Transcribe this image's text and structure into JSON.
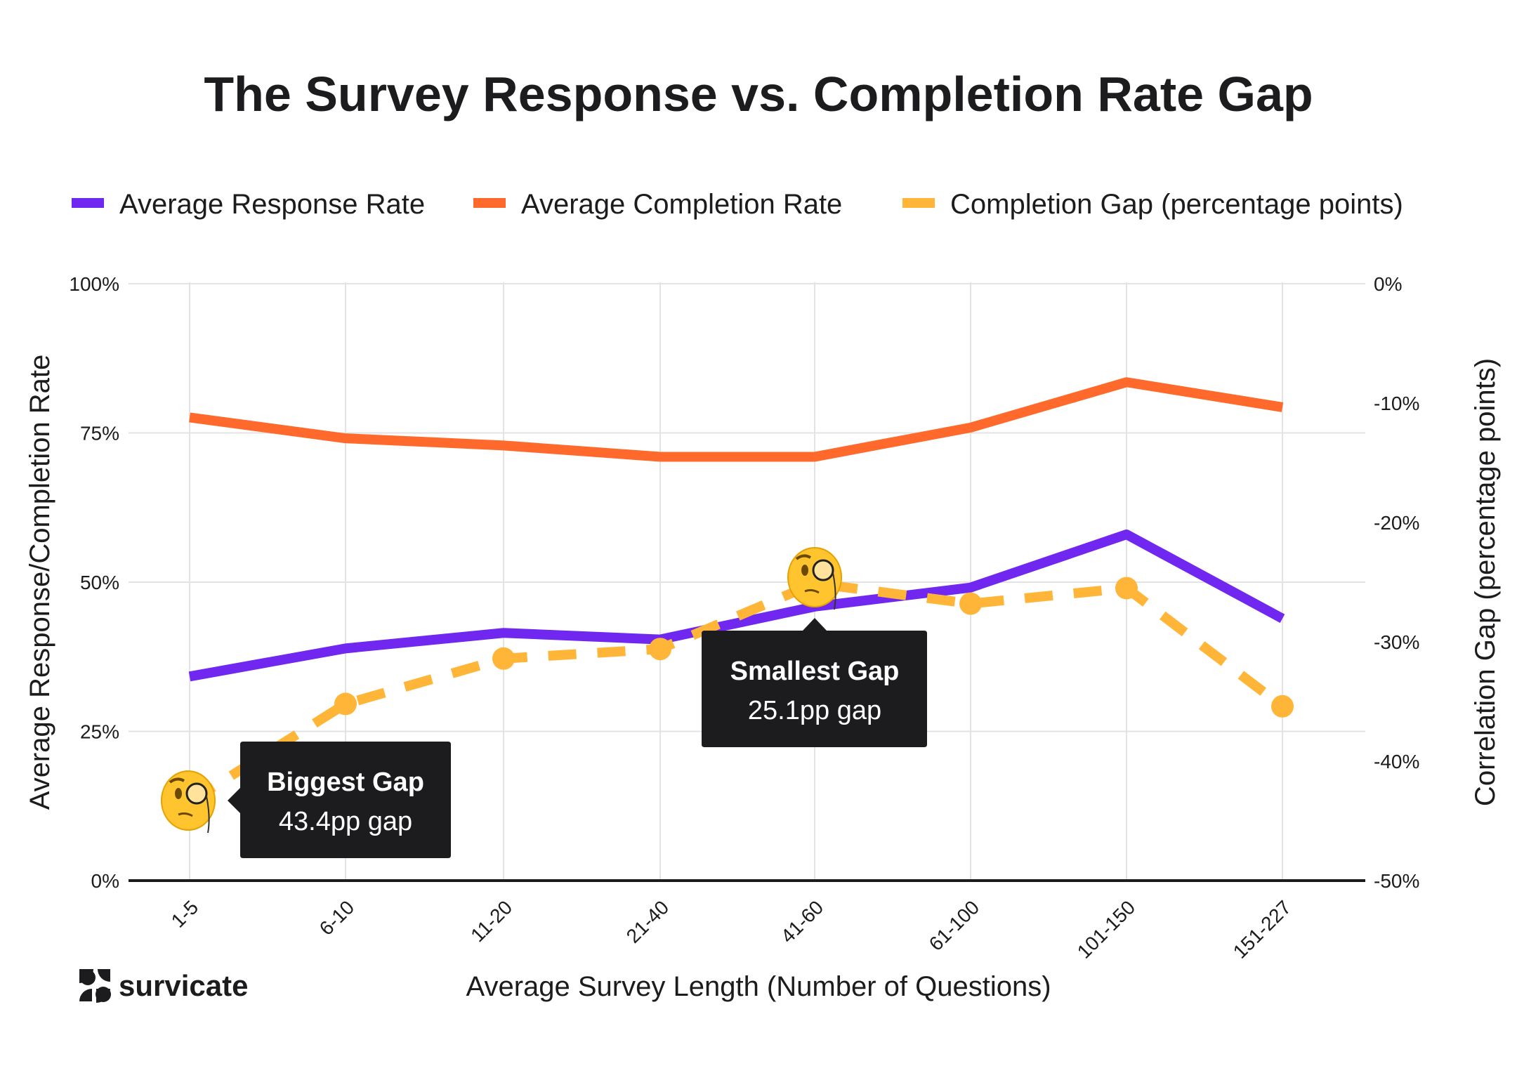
{
  "chart_data": {
    "type": "line",
    "title": "The Survey Response vs. Completion Rate Gap",
    "xlabel": "Average Survey Length (Number of Questions)",
    "ylabel": "Average Response/Completion Rate",
    "y2label": "Correlation Gap (percentage points)",
    "categories": [
      "1-5",
      "6-10",
      "11-20",
      "21-40",
      "41-60",
      "61-100",
      "101-150",
      "151-227"
    ],
    "ylim": [
      0,
      100
    ],
    "y2lim": [
      -50,
      0
    ],
    "yticks": [
      "0%",
      "25%",
      "50%",
      "75%",
      "100%"
    ],
    "y2ticks": [
      "-50%",
      "-40%",
      "-30%",
      "-20%",
      "-10%",
      "0%"
    ],
    "grid": true,
    "legend_position": "top",
    "series": [
      {
        "name": "Average Response Rate",
        "axis": "left",
        "color": "#7028F0",
        "style": "solid",
        "values": [
          34.2,
          38.9,
          41.5,
          40.4,
          45.9,
          49.1,
          58.0,
          43.9
        ]
      },
      {
        "name": "Average Completion Rate",
        "axis": "left",
        "color": "#FF6A2C",
        "style": "solid",
        "values": [
          77.6,
          74.1,
          72.9,
          71.0,
          71.0,
          75.9,
          83.5,
          79.3
        ]
      },
      {
        "name": "Completion Gap (percentage points)",
        "axis": "right",
        "color": "#FFB638",
        "style": "dashed",
        "values": [
          -43.4,
          -35.2,
          -31.4,
          -30.6,
          -25.1,
          -26.8,
          -25.5,
          -35.4
        ]
      }
    ],
    "annotations": [
      {
        "category": "1-5",
        "title": "Biggest Gap",
        "text": "43.4pp gap",
        "icon": "face-with-monocle-icon"
      },
      {
        "category": "41-60",
        "title": "Smallest Gap",
        "text": "25.1pp gap",
        "icon": "face-with-monocle-icon"
      }
    ]
  },
  "brand": {
    "name": "survicate",
    "color": "#1c1c1e"
  }
}
